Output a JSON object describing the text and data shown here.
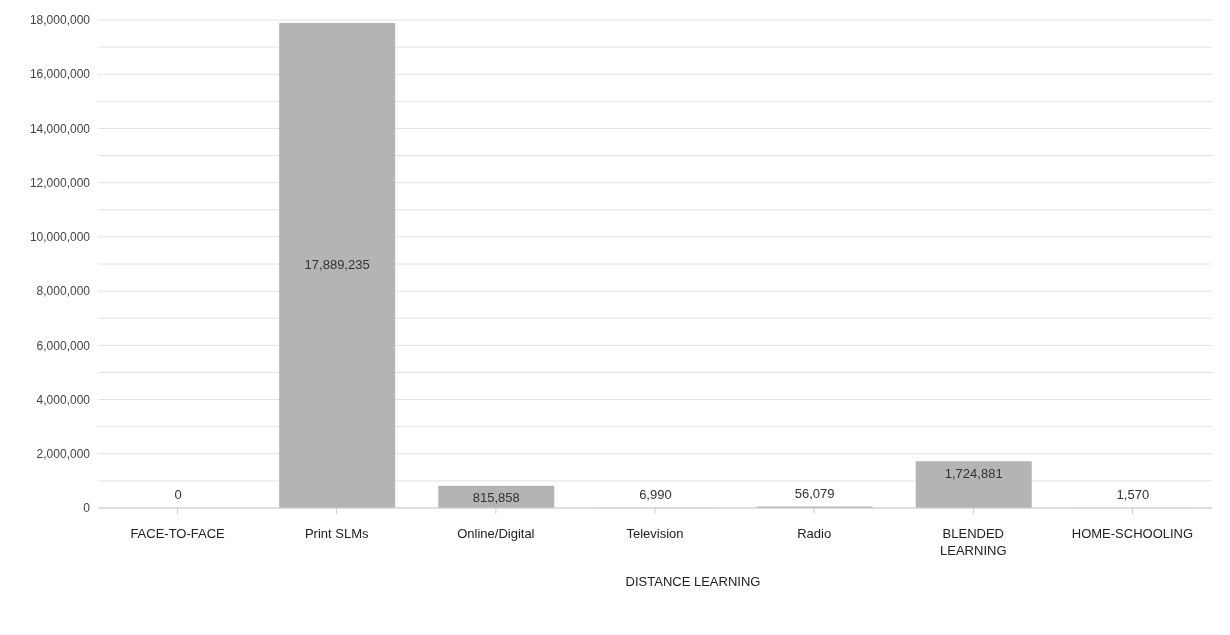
{
  "chart_data": {
    "type": "bar",
    "categories": [
      "FACE-TO-FACE",
      "Print SLMs",
      "Online/Digital",
      "Television",
      "Radio",
      "BLENDED LEARNING",
      "HOME-SCHOOLING"
    ],
    "values": [
      0,
      17889235,
      815858,
      6990,
      56079,
      1724881,
      1570
    ],
    "color": "#b4b4b4",
    "ylim": [
      0,
      18000000
    ],
    "yticks": [
      0,
      {
        "value": 1000000,
        "label": null
      },
      {
        "value": 2000000,
        "label": "2,000,000"
      },
      {
        "value": 3000000,
        "label": null
      },
      {
        "value": 4000000,
        "label": "4,000,000"
      },
      {
        "value": 5000000,
        "label": null
      },
      {
        "value": 6000000,
        "label": "6,000,000"
      },
      {
        "value": 7000000,
        "label": null
      },
      {
        "value": 8000000,
        "label": "8,000,000"
      },
      {
        "value": 9000000,
        "label": null
      },
      {
        "value": 10000000,
        "label": "10,000,000"
      },
      {
        "value": 11000000,
        "label": null
      },
      {
        "value": 12000000,
        "label": "12,000,000"
      },
      {
        "value": 13000000,
        "label": null
      },
      {
        "value": 14000000,
        "label": "14,000,000"
      },
      {
        "value": 15000000,
        "label": null
      },
      {
        "value": 16000000,
        "label": "16,000,000"
      },
      {
        "value": 17000000,
        "label": null
      },
      {
        "value": 18000000,
        "label": "18,000,000"
      }
    ],
    "grid": "y",
    "value_labels": [
      "0",
      "17,889,235",
      "815,858",
      "6,990",
      "56,079",
      "1,724,881",
      "1,570"
    ],
    "annotations": [
      "DISTANCE LEARNING"
    ]
  }
}
